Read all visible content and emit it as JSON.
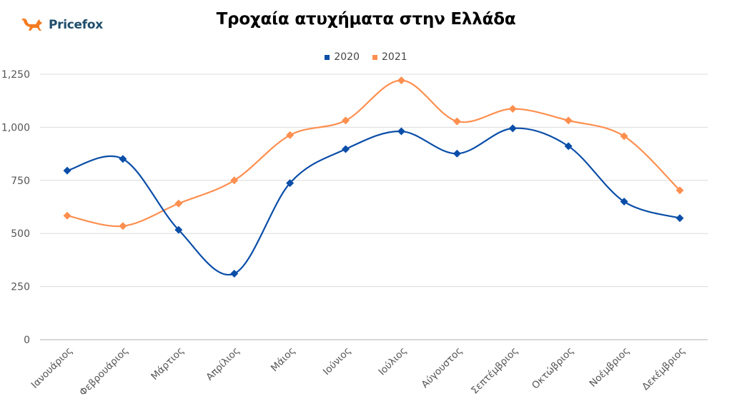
{
  "brand": {
    "name": "Pricefox",
    "icon": "fox-icon",
    "icon_color": "#f47b20",
    "text_color": "#1e4d6b"
  },
  "chart_data": {
    "type": "line",
    "title": "Τροχαία ατυχήματα στην Ελλάδα",
    "xlabel": "",
    "ylabel": "",
    "ylim": [
      0,
      1250
    ],
    "yticks": [
      0,
      250,
      500,
      750,
      1000,
      1250
    ],
    "ytick_labels": [
      "0",
      "250",
      "500",
      "750",
      "1,000",
      "1,250"
    ],
    "grid": true,
    "legend_position": "top",
    "smooth": true,
    "marker": "diamond",
    "categories": [
      "Ιανουάριος",
      "Φεβρουάριος",
      "Μάρτιος",
      "Απρίλιος",
      "Μάιος",
      "Ιούνιος",
      "Ιούλιος",
      "Αύγουστος",
      "Σεπτέμβριος",
      "Οκτώβριος",
      "Νοέμβριος",
      "Δεκέμβριος"
    ],
    "series": [
      {
        "name": "2020",
        "color": "#0a4ea8",
        "values": [
          796,
          851,
          517,
          311,
          737,
          897,
          981,
          876,
          995,
          911,
          650,
          572
        ]
      },
      {
        "name": "2021",
        "color": "#fe8f4f",
        "values": [
          584,
          535,
          641,
          750,
          963,
          1032,
          1221,
          1028,
          1087,
          1032,
          958,
          703
        ]
      }
    ]
  }
}
